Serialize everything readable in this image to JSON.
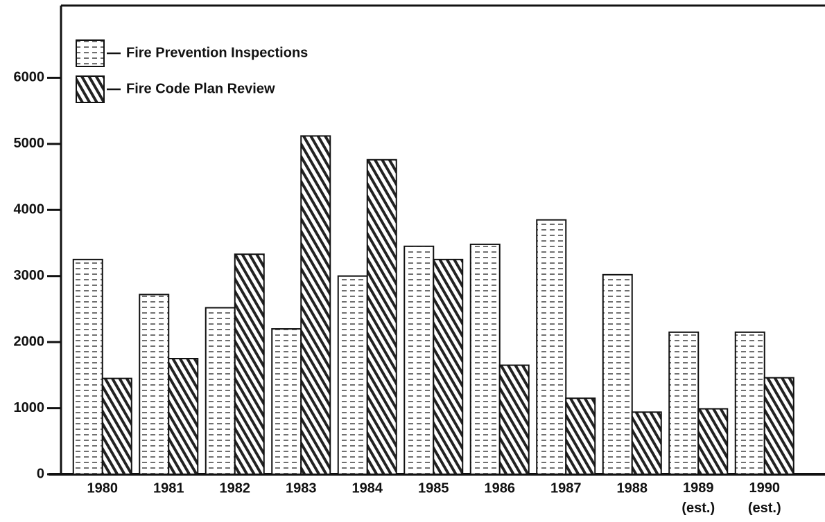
{
  "chart_data": {
    "type": "bar",
    "categories": [
      "1980",
      "1981",
      "1982",
      "1983",
      "1984",
      "1985",
      "1986",
      "1987",
      "1988",
      "1989 (est.)",
      "1990 (est.)"
    ],
    "series": [
      {
        "name": "Fire Prevention Inspections",
        "color": "#111111",
        "pattern": "dashes",
        "values": [
          3250,
          2720,
          2520,
          2200,
          3000,
          3450,
          3480,
          3850,
          3020,
          2150,
          2150
        ]
      },
      {
        "name": "Fire Code Plan Review",
        "color": "#111111",
        "pattern": "hatch",
        "values": [
          1450,
          1750,
          3330,
          5120,
          4760,
          3250,
          1650,
          1150,
          940,
          990,
          1460
        ]
      }
    ],
    "ylim": [
      0,
      7000
    ],
    "yticks": [
      0,
      1000,
      2000,
      3000,
      4000,
      5000,
      6000
    ],
    "legend": "top-left"
  }
}
